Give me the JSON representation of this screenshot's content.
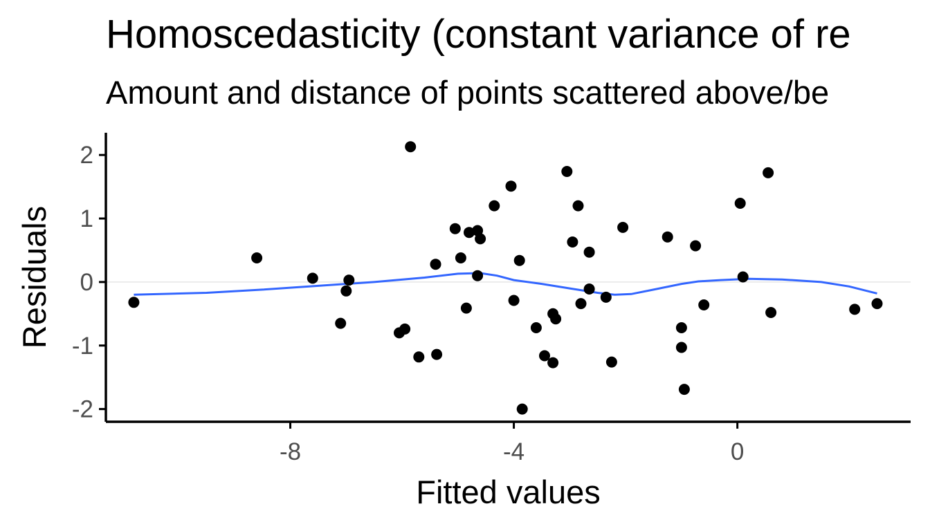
{
  "chart_data": {
    "type": "scatter",
    "title": "Homoscedasticity (constant variance of re",
    "subtitle": "Amount and distance of points scattered above/be",
    "xlabel": "Fitted values",
    "ylabel": "Residuals",
    "xlim": [
      -11.3,
      3.1
    ],
    "ylim": [
      -2.2,
      2.35
    ],
    "x_ticks": [
      -8,
      -4,
      0
    ],
    "x_tick_labels": [
      "-8",
      "-4",
      "0"
    ],
    "y_ticks": [
      -2,
      -1,
      0,
      1,
      2
    ],
    "y_tick_labels": [
      "-2",
      "-1",
      "0",
      "1",
      "2"
    ],
    "grid": false,
    "reference_line": {
      "y": 0,
      "color": "#e5e5e5"
    },
    "colors": {
      "points": "#000000",
      "smooth": "#3366ff",
      "axis": "#000000",
      "tick_label": "#4d4d4d"
    },
    "points": [
      {
        "x": -10.8,
        "y": -0.32
      },
      {
        "x": -8.6,
        "y": 0.38
      },
      {
        "x": -7.6,
        "y": 0.06
      },
      {
        "x": -7.1,
        "y": -0.65
      },
      {
        "x": -7.0,
        "y": -0.14
      },
      {
        "x": -6.95,
        "y": 0.03
      },
      {
        "x": -6.05,
        "y": -0.8
      },
      {
        "x": -5.95,
        "y": -0.74
      },
      {
        "x": -5.85,
        "y": 2.13
      },
      {
        "x": -5.7,
        "y": -1.18
      },
      {
        "x": -5.4,
        "y": 0.28
      },
      {
        "x": -5.38,
        "y": -1.14
      },
      {
        "x": -5.05,
        "y": 0.84
      },
      {
        "x": -4.95,
        "y": 0.38
      },
      {
        "x": -4.85,
        "y": -0.41
      },
      {
        "x": -4.8,
        "y": 0.78
      },
      {
        "x": -4.65,
        "y": 0.81
      },
      {
        "x": -4.65,
        "y": 0.1
      },
      {
        "x": -4.6,
        "y": 0.68
      },
      {
        "x": -4.35,
        "y": 1.2
      },
      {
        "x": -4.05,
        "y": 1.51
      },
      {
        "x": -4.0,
        "y": -0.29
      },
      {
        "x": -3.9,
        "y": 0.34
      },
      {
        "x": -3.85,
        "y": -2.0
      },
      {
        "x": -3.6,
        "y": -0.72
      },
      {
        "x": -3.45,
        "y": -1.16
      },
      {
        "x": -3.3,
        "y": -1.27
      },
      {
        "x": -3.3,
        "y": -0.5
      },
      {
        "x": -3.25,
        "y": -0.58
      },
      {
        "x": -3.05,
        "y": 1.74
      },
      {
        "x": -2.95,
        "y": 0.63
      },
      {
        "x": -2.85,
        "y": 1.2
      },
      {
        "x": -2.8,
        "y": -0.34
      },
      {
        "x": -2.65,
        "y": -0.11
      },
      {
        "x": -2.65,
        "y": 0.47
      },
      {
        "x": -2.35,
        "y": -0.24
      },
      {
        "x": -2.25,
        "y": -1.26
      },
      {
        "x": -2.05,
        "y": 0.86
      },
      {
        "x": -1.25,
        "y": 0.71
      },
      {
        "x": -1.0,
        "y": -1.03
      },
      {
        "x": -1.0,
        "y": -0.72
      },
      {
        "x": -0.95,
        "y": -1.69
      },
      {
        "x": -0.75,
        "y": 0.57
      },
      {
        "x": -0.6,
        "y": -0.36
      },
      {
        "x": 0.05,
        "y": 1.24
      },
      {
        "x": 0.1,
        "y": 0.08
      },
      {
        "x": 0.55,
        "y": 1.72
      },
      {
        "x": 0.6,
        "y": -0.48
      },
      {
        "x": 2.1,
        "y": -0.43
      },
      {
        "x": 2.5,
        "y": -0.34
      }
    ],
    "smooth_line": [
      {
        "x": -10.8,
        "y": -0.2
      },
      {
        "x": -9.5,
        "y": -0.17
      },
      {
        "x": -8.5,
        "y": -0.12
      },
      {
        "x": -7.5,
        "y": -0.06
      },
      {
        "x": -6.5,
        "y": 0.0
      },
      {
        "x": -5.6,
        "y": 0.07
      },
      {
        "x": -5.0,
        "y": 0.13
      },
      {
        "x": -4.6,
        "y": 0.14
      },
      {
        "x": -4.3,
        "y": 0.1
      },
      {
        "x": -4.0,
        "y": 0.03
      },
      {
        "x": -3.5,
        "y": -0.03
      },
      {
        "x": -3.0,
        "y": -0.1
      },
      {
        "x": -2.5,
        "y": -0.17
      },
      {
        "x": -2.2,
        "y": -0.2
      },
      {
        "x": -1.9,
        "y": -0.19
      },
      {
        "x": -1.5,
        "y": -0.12
      },
      {
        "x": -1.0,
        "y": -0.03
      },
      {
        "x": -0.7,
        "y": 0.01
      },
      {
        "x": -0.3,
        "y": 0.03
      },
      {
        "x": 0.2,
        "y": 0.05
      },
      {
        "x": 0.8,
        "y": 0.04
      },
      {
        "x": 1.5,
        "y": 0.0
      },
      {
        "x": 2.0,
        "y": -0.07
      },
      {
        "x": 2.5,
        "y": -0.18
      }
    ]
  }
}
